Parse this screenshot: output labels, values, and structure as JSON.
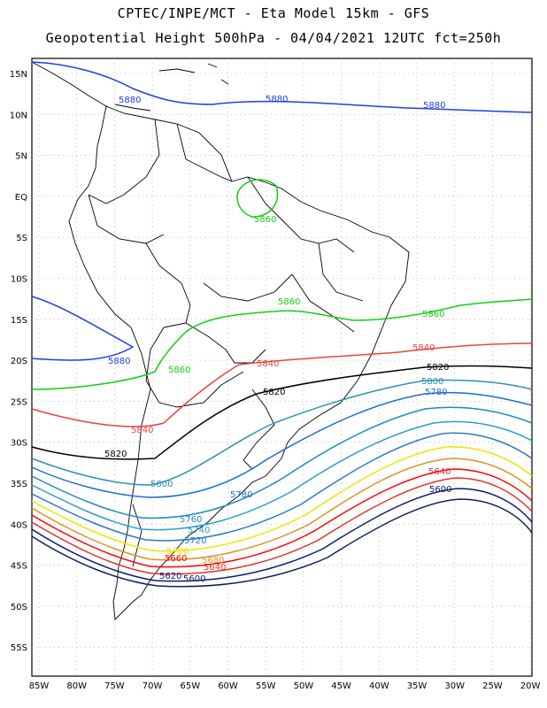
{
  "header": {
    "line1": "CPTEC/INPE/MCT -  Eta Model 15km - GFS",
    "line2": "Geopotential Height 500hPa - 04/04/2021 12UTC fct=250h"
  },
  "axes": {
    "lon_ticks": [
      "85W",
      "80W",
      "75W",
      "70W",
      "65W",
      "60W",
      "55W",
      "50W",
      "45W",
      "40W",
      "35W",
      "30W",
      "25W",
      "20W"
    ],
    "lat_ticks": [
      "15N",
      "10N",
      "5N",
      "EQ",
      "5S",
      "10S",
      "15S",
      "20S",
      "25S",
      "30S",
      "35S",
      "40S",
      "45S",
      "50S",
      "55S"
    ]
  },
  "colors": {
    "c5880": "#2040e0",
    "c5860": "#10d010",
    "c5840": "#f04040",
    "c5820": "#000000",
    "c5800": "#3090b0",
    "c5780": "#1a6ed0",
    "c5760": "#1a8cc0",
    "c5740": "#28a0c8",
    "c5720": "#2878c8",
    "c5700": "#e8e800",
    "c5680": "#e09020",
    "c5660": "#ff0000",
    "c5640": "#e03030",
    "c5620": "#0a1a70",
    "c5600": "#102060"
  },
  "contour_labels": {
    "c5880": "5880",
    "c5860": "5860",
    "c5840": "5840",
    "c5820": "5820",
    "c5800": "5800",
    "c5780": "5780",
    "c5760": "5760",
    "c5740": "5740",
    "c5720": "5720",
    "c5700": "5700",
    "c5680": "5680",
    "c5660": "5660",
    "c5640": "5640",
    "c5620": "5620",
    "c5600": "5600"
  }
}
